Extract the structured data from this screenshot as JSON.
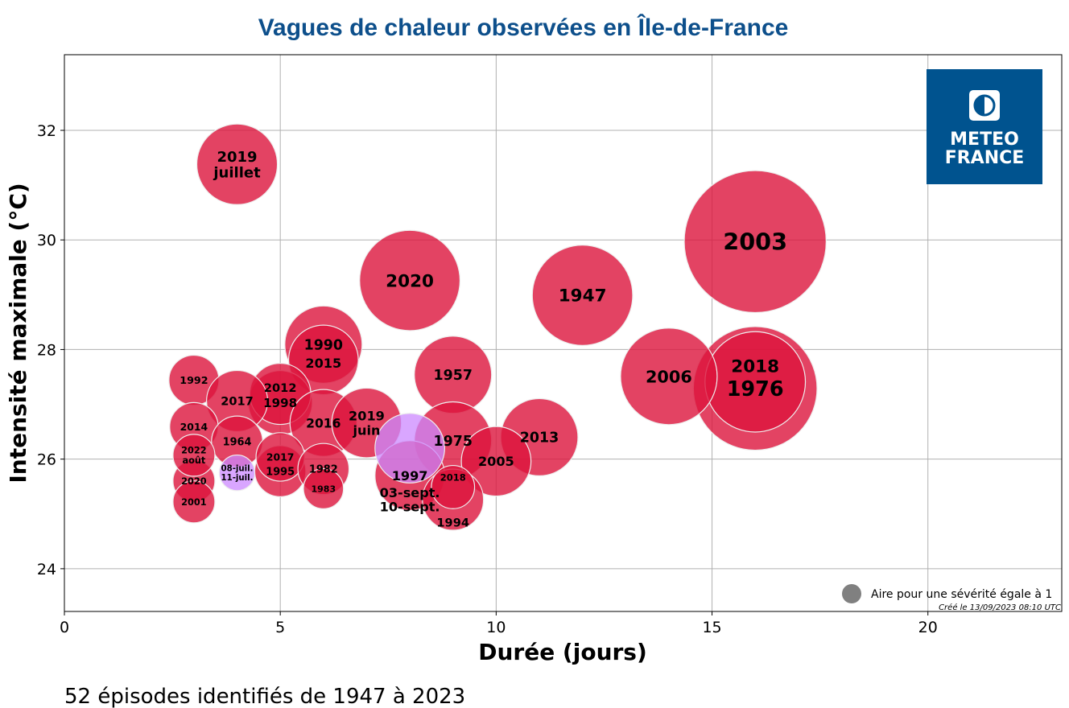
{
  "chart_data": {
    "type": "scatter",
    "title": "Vagues de chaleur observées en Île-de-France",
    "xlabel": "Durée (jours)",
    "ylabel": "Intensité maximale (°C)",
    "xlim": [
      0,
      23.1
    ],
    "ylim": [
      23.22,
      33.38
    ],
    "xticks": [
      0,
      5,
      10,
      15,
      20
    ],
    "yticks": [
      24,
      26,
      28,
      30,
      32
    ],
    "grid": true,
    "colors": {
      "past": "#dc143c",
      "current": "#cc88ff",
      "title": "#0d4f8b"
    },
    "legend": {
      "text": "Aire pour une sévérité égale à 1",
      "placement": "bottom-right",
      "marker_color": "#808080"
    },
    "created": "Créé le 13/09/2023 08:10 UTC",
    "points": [
      {
        "label": [
          "2003"
        ],
        "x": 16,
        "y": 29.97,
        "severity": 54,
        "current": false
      },
      {
        "label": [
          "1976"
        ],
        "x": 16,
        "y": 27.29,
        "severity": 41,
        "current": false
      },
      {
        "label": [
          "2018"
        ],
        "x": 16,
        "y": 27.41,
        "severity": 27,
        "current": false
      },
      {
        "label": [
          "2020"
        ],
        "x": 8,
        "y": 29.26,
        "severity": 27,
        "current": false
      },
      {
        "label": [
          "1947"
        ],
        "x": 12,
        "y": 28.99,
        "severity": 27,
        "current": false
      },
      {
        "label": [
          "2006"
        ],
        "x": 14,
        "y": 27.51,
        "severity": 25,
        "current": false
      },
      {
        "label": [
          "2019",
          "juillet"
        ],
        "x": 4,
        "y": 31.38,
        "severity": 17.4,
        "current": false
      },
      {
        "label": [
          "1990"
        ],
        "x": 6,
        "y": 28.09,
        "severity": 16,
        "current": false
      },
      {
        "label": [
          "2015"
        ],
        "x": 6,
        "y": 27.81,
        "severity": 13,
        "current": false
      },
      {
        "label": [
          "1957"
        ],
        "x": 9,
        "y": 27.54,
        "severity": 16,
        "current": false
      },
      {
        "label": [
          "1975"
        ],
        "x": 9,
        "y": 26.34,
        "severity": 16,
        "current": false
      },
      {
        "label": [
          "2013"
        ],
        "x": 11,
        "y": 26.4,
        "severity": 16,
        "current": false
      },
      {
        "label": [
          "1998"
        ],
        "x": 5,
        "y": 27.03,
        "severity": 11,
        "current": false
      },
      {
        "label": [
          "2012"
        ],
        "x": 5,
        "y": 27.19,
        "severity": 10,
        "current": false
      },
      {
        "label": [
          "1992"
        ],
        "x": 3,
        "y": 27.44,
        "severity": 6.7,
        "current": false
      },
      {
        "label": [
          "2017"
        ],
        "x": 4,
        "y": 27.06,
        "severity": 10,
        "current": false
      },
      {
        "label": [
          "2016"
        ],
        "x": 6,
        "y": 26.66,
        "severity": 12,
        "current": false
      },
      {
        "label": [
          "2019",
          "juin"
        ],
        "x": 7,
        "y": 26.66,
        "severity": 13,
        "current": false
      },
      {
        "label": [
          "1997"
        ],
        "x": 8,
        "y": 25.7,
        "severity": 13,
        "current": false
      },
      {
        "label": [
          "03-sept.",
          "10-sept."
        ],
        "x": 8,
        "y": 26.2,
        "severity": 13,
        "current": true
      },
      {
        "label": [
          "2005"
        ],
        "x": 10,
        "y": 25.96,
        "severity": 13,
        "current": false
      },
      {
        "label": [
          "1994"
        ],
        "x": 9,
        "y": 25.26,
        "severity": 10,
        "current": false
      },
      {
        "label": [
          "2018"
        ],
        "x": 9,
        "y": 25.49,
        "severity": 5,
        "current": false
      },
      {
        "label": [
          "2014"
        ],
        "x": 3,
        "y": 26.59,
        "severity": 6.3,
        "current": false
      },
      {
        "label": [
          "1964"
        ],
        "x": 4,
        "y": 26.32,
        "severity": 7,
        "current": false
      },
      {
        "label": [
          "2020"
        ],
        "x": 3,
        "y": 25.6,
        "severity": 4.7,
        "current": false
      },
      {
        "label": [
          "2022",
          "août"
        ],
        "x": 3,
        "y": 26.07,
        "severity": 4.7,
        "current": false
      },
      {
        "label": [
          "2001"
        ],
        "x": 3,
        "y": 25.22,
        "severity": 4.7,
        "current": false
      },
      {
        "label": [
          "08-juil.",
          "11-juil."
        ],
        "x": 4,
        "y": 25.75,
        "severity": 3.4,
        "current": true
      },
      {
        "label": [
          "1995"
        ],
        "x": 5,
        "y": 25.78,
        "severity": 7,
        "current": false
      },
      {
        "label": [
          "2017"
        ],
        "x": 5,
        "y": 26.04,
        "severity": 6.3,
        "current": false
      },
      {
        "label": [
          "1982"
        ],
        "x": 6,
        "y": 25.82,
        "severity": 7,
        "current": false
      },
      {
        "label": [
          "1983"
        ],
        "x": 6,
        "y": 25.46,
        "severity": 4.3,
        "current": false
      }
    ]
  },
  "logo": {
    "line1": "METEO",
    "line2": "FRANCE",
    "color": "#00538f"
  },
  "footer": "52 épisodes identifiés de 1947 à 2023"
}
